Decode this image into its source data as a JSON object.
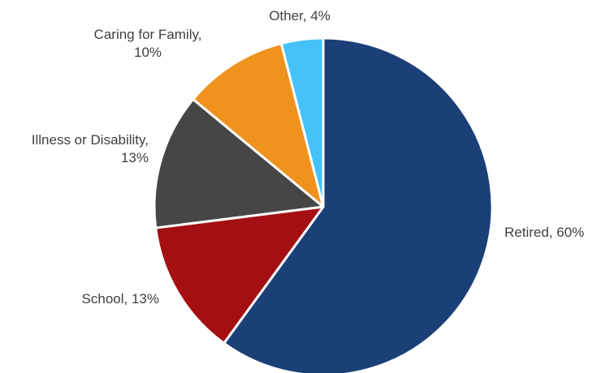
{
  "chart_data": {
    "type": "pie",
    "title": "",
    "start_angle_deg": 0,
    "direction": "clockwise",
    "legend": "none",
    "slices": [
      {
        "name": "Retired",
        "value": 60,
        "color": "#1b3f77",
        "label_lines": [
          "Retired, 60%"
        ]
      },
      {
        "name": "School",
        "value": 13,
        "color": "#a30f13",
        "label_lines": [
          "School, 13%"
        ]
      },
      {
        "name": "Illness or Disability",
        "value": 13,
        "color": "#464646",
        "label_lines": [
          "Illness or Disability,",
          "13%"
        ]
      },
      {
        "name": "Caring for Family",
        "value": 10,
        "color": "#f0921e",
        "label_lines": [
          "Caring for Family,",
          "10%"
        ]
      },
      {
        "name": "Other",
        "value": 4,
        "color": "#45c2f7",
        "label_lines": [
          "Other, 4%"
        ]
      }
    ]
  }
}
